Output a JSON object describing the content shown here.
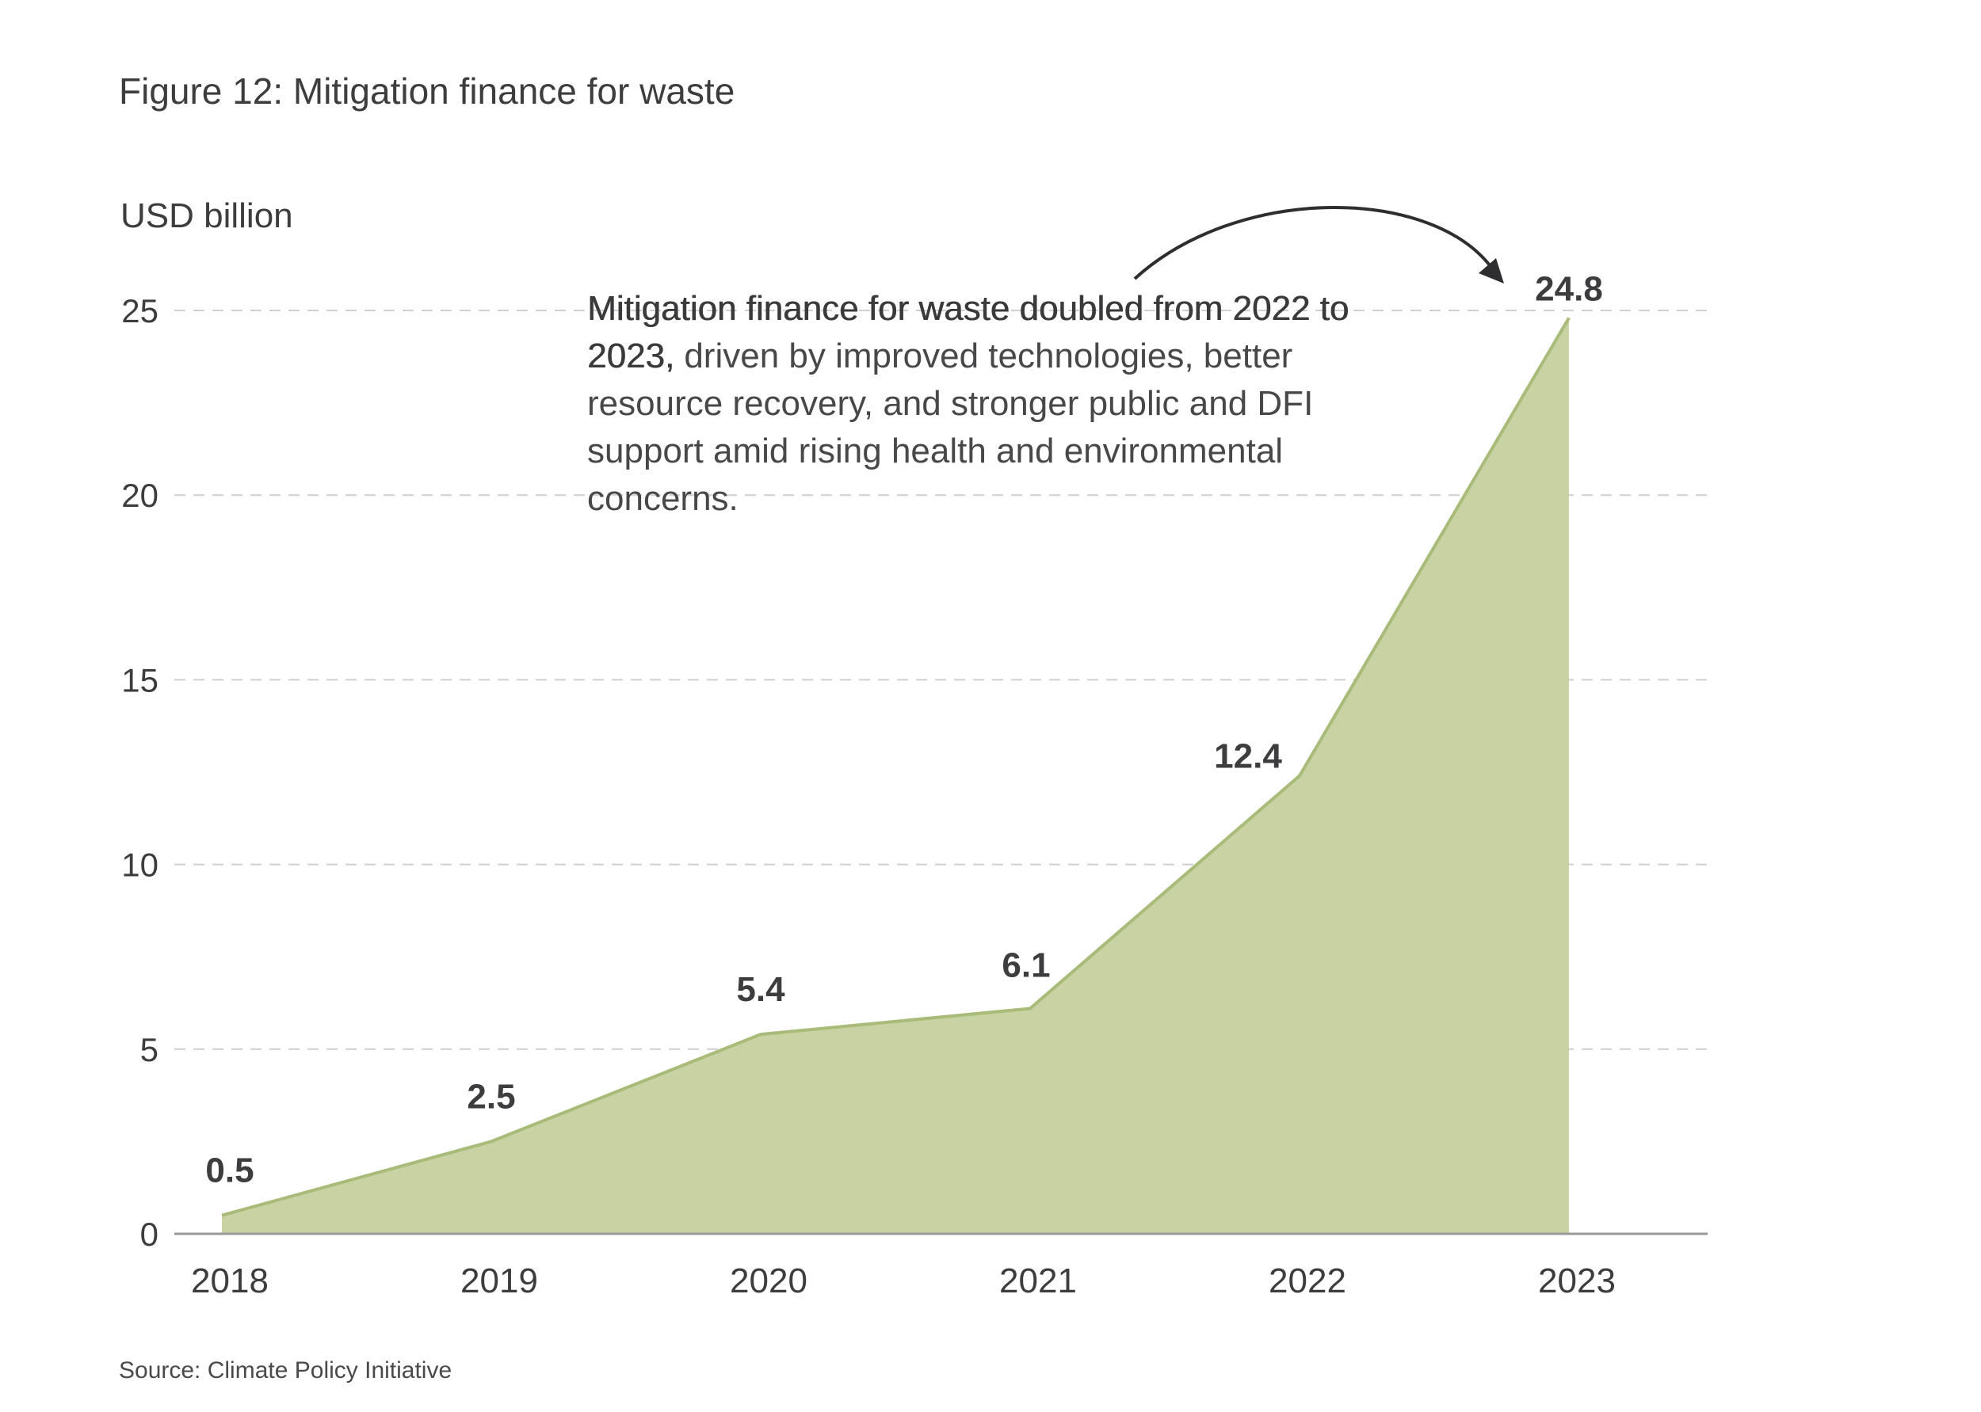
{
  "figure": {
    "title": "Figure 12: Mitigation finance for waste",
    "source": "Source: Climate Policy Initiative"
  },
  "annotation": {
    "highlight": "Mitigation finance for waste doubled from 2022 to 2023,",
    "body": " driven by improved technologies, better resource recovery, and stronger public and DFI support amid rising health and environmental concerns."
  },
  "colors": {
    "area_fill": "#c8d2a2",
    "area_line": "#a9bb79",
    "grid": "#cfcfcf",
    "axis": "#9a9a9a",
    "text": "#3d3d3f"
  },
  "chart_data": {
    "type": "area",
    "title": "",
    "xlabel": "",
    "ylabel": "USD billion",
    "categories": [
      "2018",
      "2019",
      "2020",
      "2021",
      "2022",
      "2023"
    ],
    "values": [
      0.5,
      2.5,
      5.4,
      6.1,
      12.4,
      24.8
    ],
    "data_labels": [
      "0.5",
      "2.5",
      "5.4",
      "6.1",
      "12.4",
      "24.8"
    ],
    "y_ticks": [
      0,
      5,
      10,
      15,
      20,
      25
    ],
    "y_tick_labels": [
      "0",
      "5",
      "10",
      "15",
      "20",
      "25"
    ],
    "ylim": [
      0,
      25
    ],
    "grid": true,
    "legend": "none"
  }
}
